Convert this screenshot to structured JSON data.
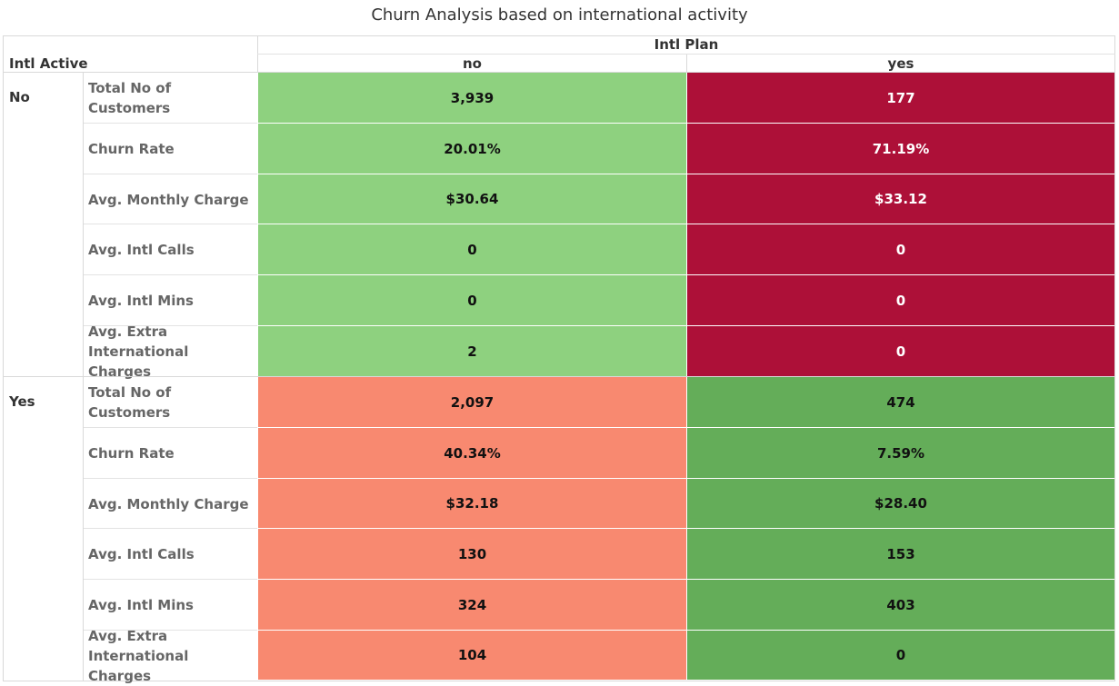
{
  "title": "Churn Analysis based on international activity",
  "chart_data": {
    "type": "table",
    "title": "Churn Analysis based on international activity",
    "column_dimension": "Intl Plan",
    "row_dimension": "Intl Active",
    "columns": [
      "no",
      "yes"
    ],
    "colors": {
      "light_green": "#8ed17f",
      "dark_red": "#ad1038",
      "salmon": "#f88970",
      "dark_green": "#64ad59"
    },
    "groups": [
      {
        "label": "No",
        "rows": [
          {
            "metric": "Total No of Customers",
            "values": [
              "3,939",
              "177"
            ]
          },
          {
            "metric": "Churn Rate",
            "values": [
              "20.01%",
              "71.19%"
            ]
          },
          {
            "metric": "Avg. Monthly Charge",
            "values": [
              "$30.64",
              "$33.12"
            ]
          },
          {
            "metric": "Avg. Intl Calls",
            "values": [
              "0",
              "0"
            ]
          },
          {
            "metric": "Avg. Intl Mins",
            "values": [
              "0",
              "0"
            ]
          },
          {
            "metric": "Avg. Extra International Charges",
            "values": [
              "2",
              "0"
            ]
          }
        ],
        "cell_colors": [
          "light_green",
          "dark_red"
        ]
      },
      {
        "label": "Yes",
        "rows": [
          {
            "metric": "Total No of Customers",
            "values": [
              "2,097",
              "474"
            ]
          },
          {
            "metric": "Churn Rate",
            "values": [
              "40.34%",
              "7.59%"
            ]
          },
          {
            "metric": "Avg. Monthly Charge",
            "values": [
              "$32.18",
              "$28.40"
            ]
          },
          {
            "metric": "Avg. Intl Calls",
            "values": [
              "130",
              "153"
            ]
          },
          {
            "metric": "Avg. Intl Mins",
            "values": [
              "324",
              "403"
            ]
          },
          {
            "metric": "Avg. Extra International Charges",
            "values": [
              "104",
              "0"
            ]
          }
        ],
        "cell_colors": [
          "salmon",
          "dark_green"
        ]
      }
    ]
  }
}
